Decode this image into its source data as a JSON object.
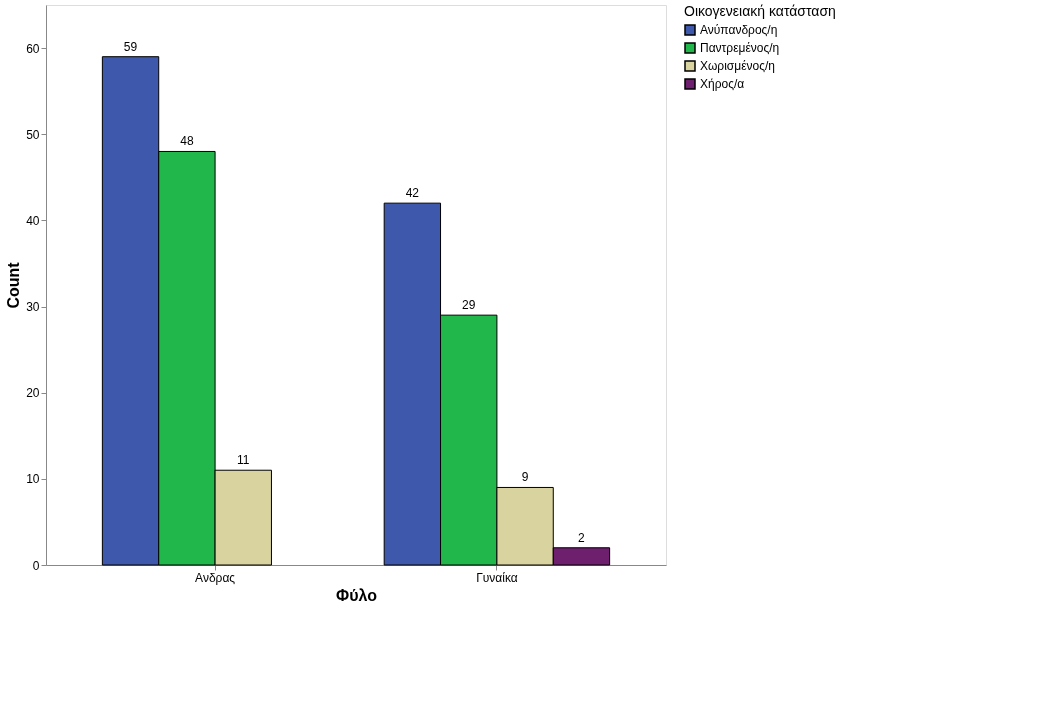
{
  "chart_data": {
    "type": "bar",
    "xlabel": "Φύλο",
    "ylabel": "Count",
    "legend_title": "Οικογενειακή κατάσταση",
    "categories": [
      "Ανδρας",
      "Γυναίκα"
    ],
    "series": [
      {
        "name": "Ανύπανδρος/η",
        "color": "#3e58ac",
        "values": [
          59,
          42
        ]
      },
      {
        "name": "Παντρεμένος/η",
        "color": "#21b74a",
        "values": [
          48,
          29
        ]
      },
      {
        "name": "Χωρισμένος/η",
        "color": "#d9d3a0",
        "values": [
          11,
          9
        ]
      },
      {
        "name": "Χήρος/α",
        "color": "#6e1f6e",
        "values": [
          null,
          2
        ]
      }
    ],
    "ylim": [
      0,
      65
    ],
    "yticks": [
      0,
      10,
      20,
      30,
      40,
      50,
      60
    ],
    "grid": false,
    "legend": "top right",
    "data_labels": true
  }
}
